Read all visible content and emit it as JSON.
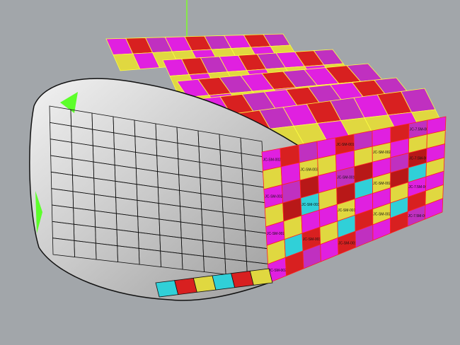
{
  "viewport": {
    "background": "#a2a6aa",
    "shell_color": "#d6d6d6",
    "edge_color": "#111111",
    "axis_color": "#7cff2a"
  },
  "panel_palette": [
    "#e020e0",
    "#30d0d8",
    "#d82020",
    "#e0d840",
    "#c030c0",
    "#b81818"
  ],
  "panel_labels": [
    "JC-SM-002b",
    "JC-SM-001",
    "JC-7.5M-002",
    "JC-SM-003b",
    "JC-SM-002a"
  ]
}
